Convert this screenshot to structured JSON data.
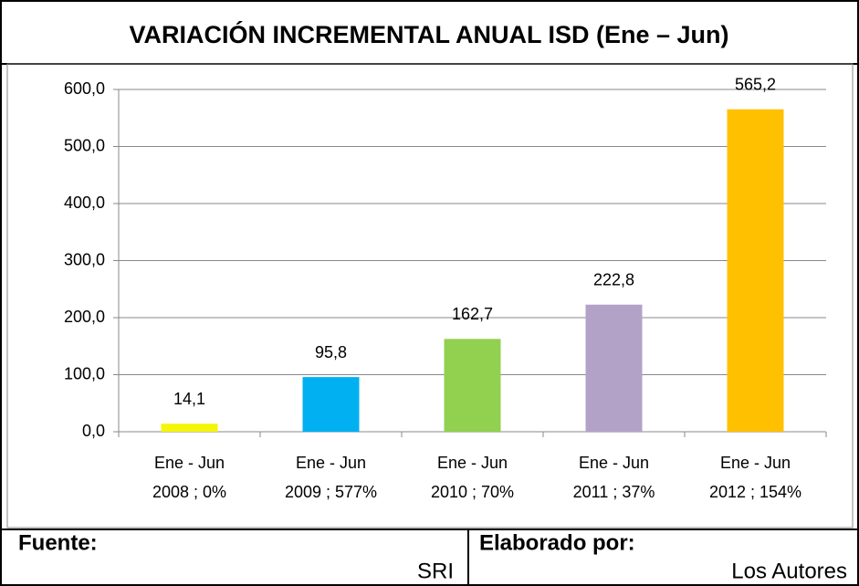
{
  "chart_data": {
    "type": "bar",
    "title": "VARIACIÓN INCREMENTAL ANUAL ISD (Ene – Jun)",
    "categories": [
      [
        "Ene - Jun",
        "2008 ; 0%"
      ],
      [
        "Ene - Jun",
        "2009 ; 577%"
      ],
      [
        "Ene - Jun",
        "2010 ; 70%"
      ],
      [
        "Ene - Jun",
        "2011 ; 37%"
      ],
      [
        "Ene - Jun",
        "2012 ; 154%"
      ]
    ],
    "values": [
      14.1,
      95.8,
      162.7,
      222.8,
      565.2
    ],
    "value_labels": [
      "14,1",
      "95,8",
      "162,7",
      "222,8",
      "565,2"
    ],
    "colors": [
      "#f5f50a",
      "#00b0f0",
      "#92d050",
      "#b3a2c7",
      "#ffc000"
    ],
    "ylim": [
      0,
      600
    ],
    "yticks": [
      {
        "value": 0,
        "label": "0,0"
      },
      {
        "value": 100,
        "label": "100,0"
      },
      {
        "value": 200,
        "label": "200,0"
      },
      {
        "value": 300,
        "label": "300,0"
      },
      {
        "value": 400,
        "label": "400,0"
      },
      {
        "value": 500,
        "label": "500,0"
      },
      {
        "value": 600,
        "label": "600,0"
      }
    ],
    "grid": true
  },
  "footer": {
    "source_label": "Fuente:",
    "source": "SRI",
    "author_label": "Elaborado por:",
    "author": "Los Autores"
  }
}
